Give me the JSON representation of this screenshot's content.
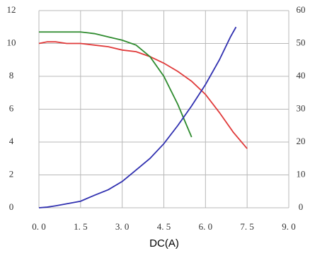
{
  "chart_data": {
    "type": "line",
    "x_label": "DC(A)",
    "xlim": [
      0,
      9
    ],
    "xticks": [
      {
        "value": 0,
        "label": "0. 0"
      },
      {
        "value": 1.5,
        "label": "1. 5"
      },
      {
        "value": 3,
        "label": "3. 0"
      },
      {
        "value": 4.5,
        "label": "4. 5"
      },
      {
        "value": 6,
        "label": "6. 0"
      },
      {
        "value": 7.5,
        "label": "7. 5"
      },
      {
        "value": 9,
        "label": "9. 0"
      }
    ],
    "ylim": [
      0,
      12
    ],
    "yticks": [
      0,
      2,
      4,
      6,
      8,
      10,
      12
    ],
    "y2lim": [
      0,
      60
    ],
    "y2ticks": [
      0,
      10,
      20,
      30,
      40,
      50,
      60
    ],
    "grid": true,
    "series": [
      {
        "color": "#e03a3a",
        "x": [
          0,
          0.3,
          0.6,
          1,
          1.5,
          2,
          2.5,
          3,
          3.5,
          4,
          4.5,
          5,
          5.5,
          6,
          6.5,
          7,
          7.5
        ],
        "values": [
          10.0,
          10.1,
          10.1,
          10.0,
          10.0,
          9.9,
          9.8,
          9.6,
          9.5,
          9.2,
          8.8,
          8.3,
          7.7,
          6.9,
          5.8,
          4.6,
          3.6
        ]
      },
      {
        "color": "#2e8b2e",
        "x": [
          0,
          0.5,
          1,
          1.5,
          2,
          2.5,
          3,
          3.5,
          4,
          4.5,
          5,
          5.5
        ],
        "values": [
          10.7,
          10.7,
          10.7,
          10.7,
          10.6,
          10.4,
          10.2,
          9.9,
          9.2,
          8.0,
          6.3,
          4.3
        ]
      },
      {
        "color": "#3030b0",
        "axis": "y2",
        "x": [
          0,
          0.3,
          0.6,
          1,
          1.5,
          2,
          2.5,
          3,
          3.5,
          4,
          4.5,
          5,
          5.5,
          6,
          6.5,
          6.9,
          7.1
        ],
        "values": [
          0,
          0.2,
          0.6,
          1.2,
          2,
          3.8,
          5.5,
          8,
          11.5,
          15,
          19.5,
          25,
          31,
          37.5,
          45,
          52,
          55
        ]
      }
    ]
  }
}
